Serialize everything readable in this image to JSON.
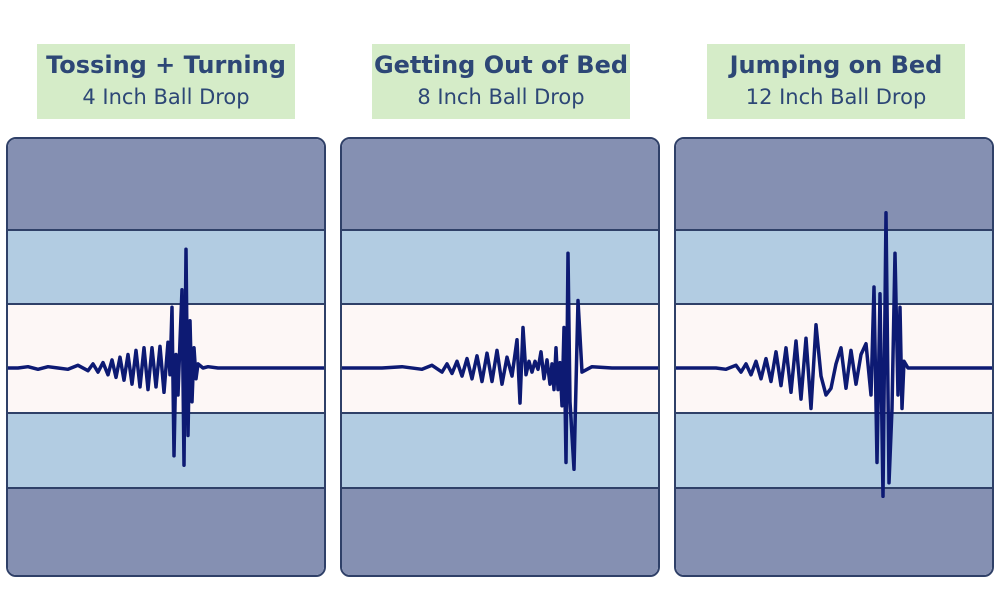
{
  "colors": {
    "label_bg": "#d5ecc8",
    "label_text": "#2d4776",
    "outer_band": "#8590b2",
    "middle_band": "#b2cce2",
    "center_band": "#fdf7f6",
    "divider": "#2f4068",
    "waveform": "#0d1a73"
  },
  "chart_data": [
    {
      "type": "line",
      "title": "Tossing + Turning",
      "subtitle": "4 Inch Ball Drop",
      "x": [
        0,
        10,
        20,
        30,
        40,
        50,
        60,
        70,
        80,
        85,
        90,
        95,
        100,
        104,
        108,
        112,
        116,
        120,
        124,
        128,
        132,
        136,
        140,
        144,
        148,
        152,
        156,
        160,
        162,
        164,
        166,
        168,
        170,
        172,
        174,
        176,
        178,
        180,
        182,
        184,
        186,
        188,
        190,
        195,
        200,
        210,
        230,
        260,
        290,
        320
      ],
      "values": [
        0,
        0,
        0.1,
        -0.1,
        0.1,
        0,
        -0.1,
        0.2,
        -0.2,
        0.3,
        -0.3,
        0.4,
        -0.5,
        0.6,
        -0.7,
        0.8,
        -0.9,
        1,
        -1.2,
        1.3,
        -1.4,
        1.5,
        -1.6,
        1.5,
        -1.4,
        1.6,
        -1.8,
        1.9,
        -0.5,
        4.5,
        -6.5,
        1,
        -2,
        2,
        5.8,
        -7.2,
        8.8,
        -5,
        3.5,
        -2.5,
        1.5,
        -0.8,
        0.3,
        0,
        0.1,
        0,
        0,
        0,
        0,
        0
      ],
      "ylim": [
        -10,
        10
      ]
    },
    {
      "type": "line",
      "title": "Getting Out of Bed",
      "subtitle": "8 Inch Ball Drop",
      "x": [
        0,
        20,
        40,
        60,
        80,
        90,
        100,
        105,
        110,
        115,
        120,
        125,
        130,
        135,
        140,
        145,
        150,
        155,
        160,
        165,
        170,
        175,
        178,
        181,
        184,
        187,
        190,
        193,
        196,
        199,
        202,
        205,
        208,
        210,
        212,
        214,
        216,
        218,
        220,
        222,
        224,
        226,
        228,
        232,
        236,
        240,
        250,
        270,
        300,
        320
      ],
      "values": [
        0,
        0,
        0,
        0.1,
        -0.1,
        0.2,
        -0.3,
        0.3,
        -0.4,
        0.5,
        -0.6,
        0.7,
        -0.8,
        0.9,
        -1,
        1.1,
        -1,
        1.3,
        -1.2,
        0.8,
        -0.6,
        2.1,
        -2.6,
        3,
        -0.5,
        0.5,
        -0.3,
        0.5,
        -0.1,
        1.2,
        -0.8,
        0.6,
        -1.2,
        0.3,
        -1.6,
        1.5,
        -1.6,
        0.4,
        -2.8,
        3,
        -7,
        8.5,
        -2.5,
        -7.5,
        5,
        -0.3,
        0.1,
        0,
        0,
        0
      ],
      "ylim": [
        -10,
        10
      ]
    },
    {
      "type": "line",
      "title": "Jumping on Bed",
      "subtitle": "12 Inch Ball Drop",
      "x": [
        0,
        20,
        40,
        50,
        60,
        65,
        70,
        75,
        80,
        85,
        90,
        95,
        100,
        105,
        110,
        115,
        120,
        125,
        130,
        135,
        140,
        145,
        150,
        155,
        160,
        165,
        170,
        175,
        180,
        185,
        190,
        195,
        198,
        201,
        204,
        207,
        210,
        213,
        216,
        219,
        222,
        224,
        226,
        228,
        232,
        240,
        260,
        280,
        300,
        320
      ],
      "values": [
        0,
        0,
        0,
        -0.1,
        0.2,
        -0.3,
        0.3,
        -0.5,
        0.5,
        -0.8,
        0.7,
        -1,
        1.2,
        -1.3,
        1.5,
        -1.8,
        2,
        -2.3,
        2.2,
        -3,
        3.2,
        -0.6,
        -2,
        -1.5,
        0.3,
        1.5,
        -1.5,
        1.3,
        -1.2,
        1,
        1.8,
        -2,
        6,
        -7,
        5.5,
        -9.5,
        11.5,
        -8.5,
        -3,
        8.5,
        -2,
        4.5,
        -3,
        0.5,
        0,
        0,
        0,
        0,
        0,
        0
      ],
      "ylim": [
        -10,
        10
      ]
    }
  ]
}
